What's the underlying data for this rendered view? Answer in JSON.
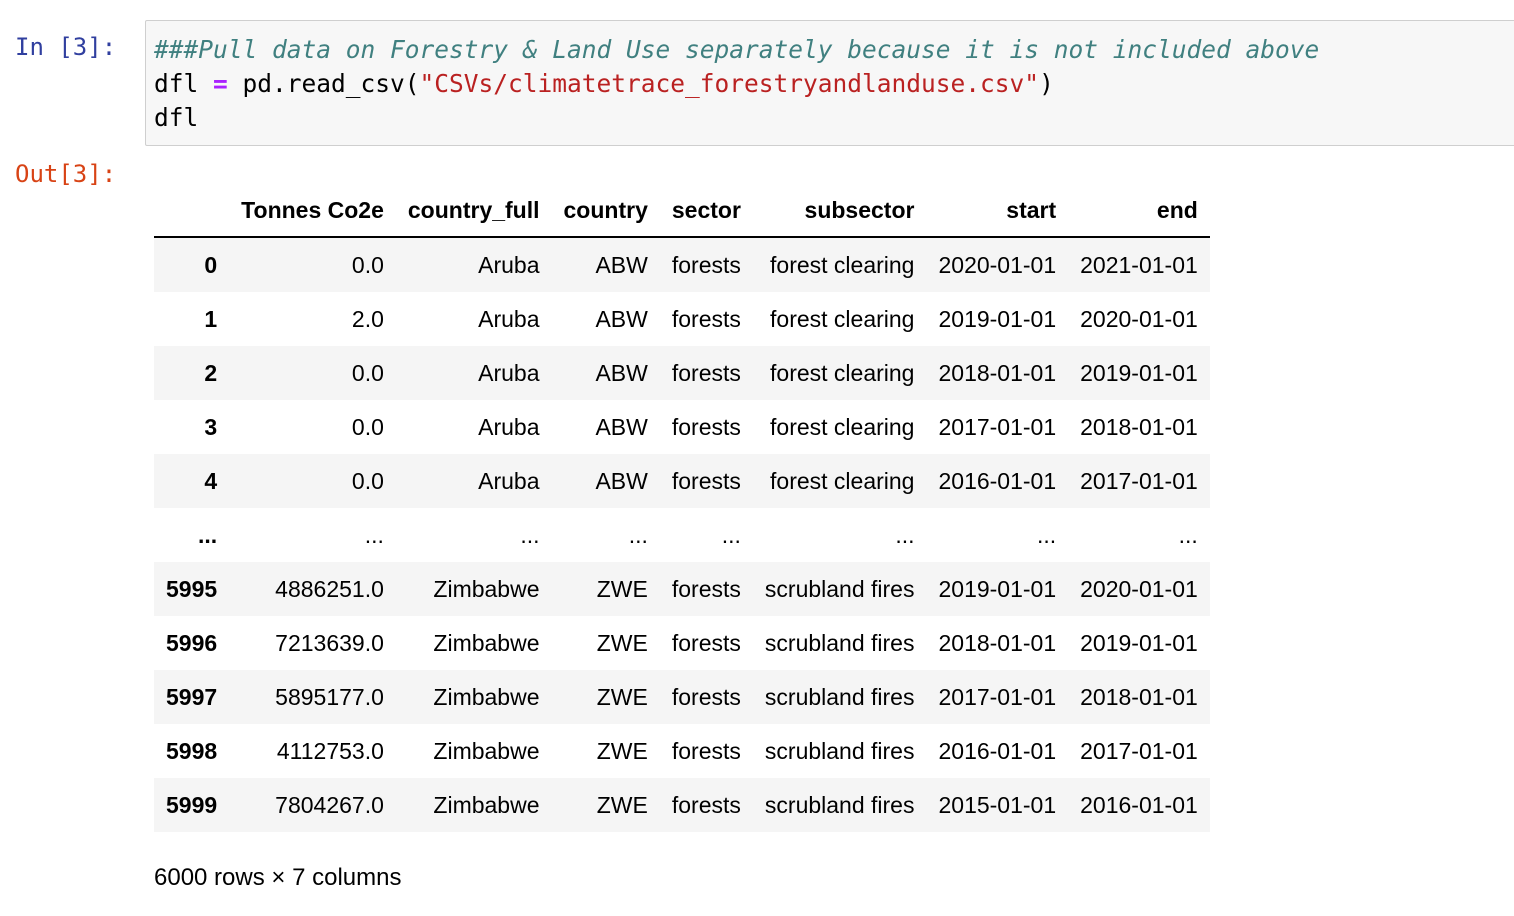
{
  "cell": {
    "in_prompt": "In [3]:",
    "out_prompt": "Out[3]:",
    "code": {
      "line1_comment": "###Pull data on Forestry & Land Use separately because it is not included above",
      "line2_var": "dfl ",
      "line2_op": "=",
      "line2_call": " pd.read_csv(",
      "line2_string": "\"CSVs/climatetrace_forestryandlanduse.csv\"",
      "line2_close": ")",
      "line3": "dfl"
    }
  },
  "dataframe": {
    "columns": [
      "",
      "Tonnes Co2e",
      "country_full",
      "country",
      "sector",
      "subsector",
      "start",
      "end"
    ],
    "rows": [
      [
        "0",
        "0.0",
        "Aruba",
        "ABW",
        "forests",
        "forest clearing",
        "2020-01-01",
        "2021-01-01"
      ],
      [
        "1",
        "2.0",
        "Aruba",
        "ABW",
        "forests",
        "forest clearing",
        "2019-01-01",
        "2020-01-01"
      ],
      [
        "2",
        "0.0",
        "Aruba",
        "ABW",
        "forests",
        "forest clearing",
        "2018-01-01",
        "2019-01-01"
      ],
      [
        "3",
        "0.0",
        "Aruba",
        "ABW",
        "forests",
        "forest clearing",
        "2017-01-01",
        "2018-01-01"
      ],
      [
        "4",
        "0.0",
        "Aruba",
        "ABW",
        "forests",
        "forest clearing",
        "2016-01-01",
        "2017-01-01"
      ],
      [
        "...",
        "...",
        "...",
        "...",
        "...",
        "...",
        "...",
        "..."
      ],
      [
        "5995",
        "4886251.0",
        "Zimbabwe",
        "ZWE",
        "forests",
        "scrubland fires",
        "2019-01-01",
        "2020-01-01"
      ],
      [
        "5996",
        "7213639.0",
        "Zimbabwe",
        "ZWE",
        "forests",
        "scrubland fires",
        "2018-01-01",
        "2019-01-01"
      ],
      [
        "5997",
        "5895177.0",
        "Zimbabwe",
        "ZWE",
        "forests",
        "scrubland fires",
        "2017-01-01",
        "2018-01-01"
      ],
      [
        "5998",
        "4112753.0",
        "Zimbabwe",
        "ZWE",
        "forests",
        "scrubland fires",
        "2016-01-01",
        "2017-01-01"
      ],
      [
        "5999",
        "7804267.0",
        "Zimbabwe",
        "ZWE",
        "forests",
        "scrubland fires",
        "2015-01-01",
        "2016-01-01"
      ]
    ],
    "shape_text": "6000 rows × 7 columns"
  },
  "colors": {
    "in_prompt": "#303f9f",
    "out_prompt": "#d84315",
    "comment": "#408080",
    "operator": "#aa22ff",
    "string": "#ba2121",
    "striped_row": "#f5f5f5"
  }
}
